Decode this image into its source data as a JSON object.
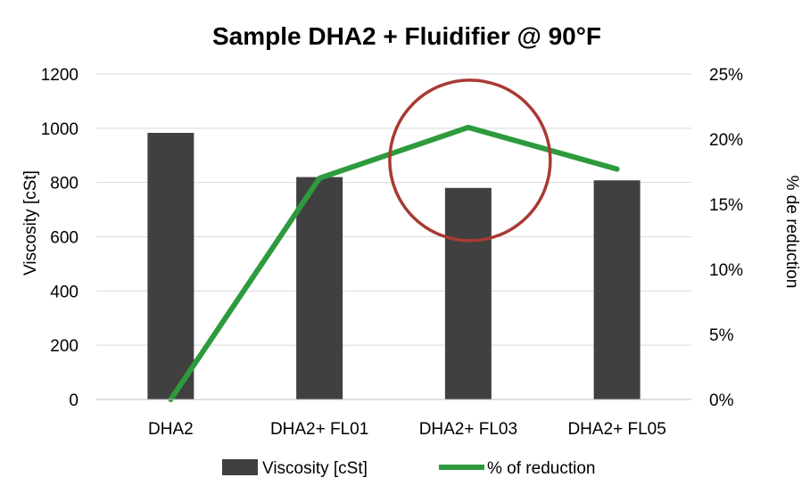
{
  "chart_data": {
    "type": "bar",
    "title": "Sample DHA2 + Fluidifier @ 90°F",
    "categories": [
      "DHA2",
      "DHA2+ FL01",
      "DHA2+ FL03",
      "DHA2+ FL05"
    ],
    "series": [
      {
        "name": "Viscosity [cSt]",
        "type": "bar",
        "axis": "left",
        "color": "#404040",
        "values": [
          983,
          820,
          780,
          808
        ]
      },
      {
        "name": "% of reduction",
        "type": "line",
        "axis": "right",
        "color": "#2e9a3e",
        "values": [
          0,
          17.0,
          20.9,
          17.7
        ]
      }
    ],
    "ylabel": "Viscosity [cSt]",
    "ylim": [
      0,
      1200
    ],
    "yticks": [
      "0",
      "200",
      "400",
      "600",
      "800",
      "1000",
      "1200"
    ],
    "y2label": "% de reduction",
    "y2lim": [
      0,
      25
    ],
    "y2ticks": [
      "0%",
      "5%",
      "10%",
      "15%",
      "20%",
      "25%"
    ],
    "grid": true,
    "legend": "bottom",
    "annotation": {
      "shape": "circle",
      "color": "#a83a32",
      "category": "DHA2+ FL03",
      "value": 20.9,
      "axis": "right"
    }
  }
}
